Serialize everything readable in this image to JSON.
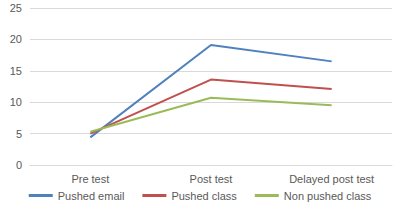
{
  "chart_data": {
    "type": "line",
    "categories": [
      "Pre test",
      "Post test",
      "Delayed post test"
    ],
    "series": [
      {
        "name": "Pushed email",
        "color": "#4f81bd",
        "values": [
          4.4,
          19.1,
          16.5
        ]
      },
      {
        "name": "Pushed class",
        "color": "#c0504d",
        "values": [
          5.0,
          13.6,
          12.1
        ]
      },
      {
        "name": "Non pushed class",
        "color": "#9bbb59",
        "values": [
          5.3,
          10.7,
          9.5
        ]
      }
    ],
    "ylim": [
      0,
      25
    ],
    "yticks": [
      0,
      5,
      10,
      15,
      20,
      25
    ],
    "grid": true,
    "legend": "bottom",
    "marker": "none",
    "line_style": "solid"
  }
}
